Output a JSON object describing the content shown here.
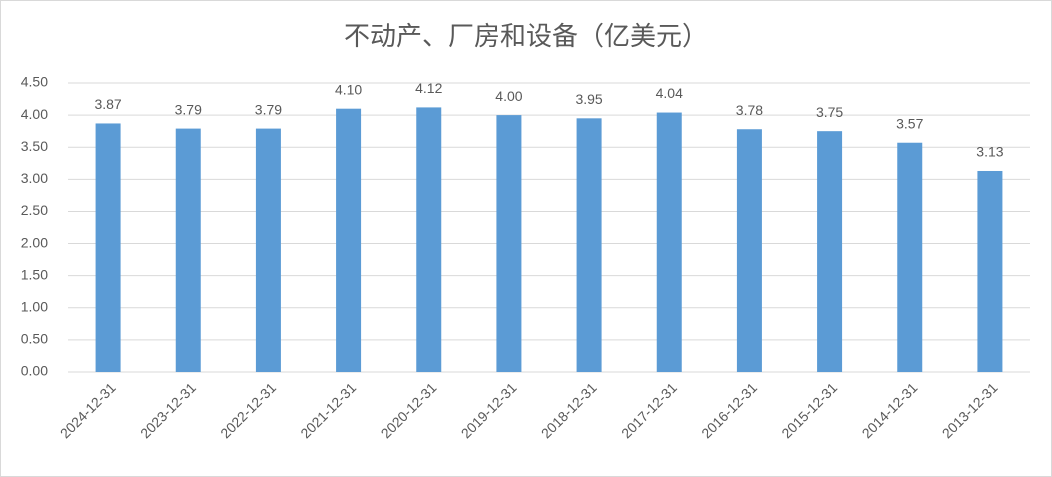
{
  "chart_data": {
    "type": "bar",
    "title": "不动产、厂房和设备（亿美元）",
    "categories": [
      "2024-12-31",
      "2023-12-31",
      "2022-12-31",
      "2021-12-31",
      "2020-12-31",
      "2019-12-31",
      "2018-12-31",
      "2017-12-31",
      "2016-12-31",
      "2015-12-31",
      "2014-12-31",
      "2013-12-31"
    ],
    "values": [
      3.87,
      3.79,
      3.79,
      4.1,
      4.12,
      4.0,
      3.95,
      4.04,
      3.78,
      3.75,
      3.57,
      3.13
    ],
    "value_labels": [
      "3.87",
      "3.79",
      "3.79",
      "4.10",
      "4.12",
      "4.00",
      "3.95",
      "4.04",
      "3.78",
      "3.75",
      "3.57",
      "3.13"
    ],
    "color": "#5b9bd5",
    "ylim": [
      0,
      4.5
    ],
    "yticks": [
      {
        "value": 0,
        "label": "0.00"
      },
      {
        "value": 0.5,
        "label": "0.50"
      },
      {
        "value": 1,
        "label": "1.00"
      },
      {
        "value": 1.5,
        "label": "1.50"
      },
      {
        "value": 2,
        "label": "2.00"
      },
      {
        "value": 2.5,
        "label": "2.50"
      },
      {
        "value": 3,
        "label": "3.00"
      },
      {
        "value": 3.5,
        "label": "3.50"
      },
      {
        "value": 4,
        "label": "4.00"
      },
      {
        "value": 4.5,
        "label": "4.50"
      }
    ],
    "grid": true
  }
}
